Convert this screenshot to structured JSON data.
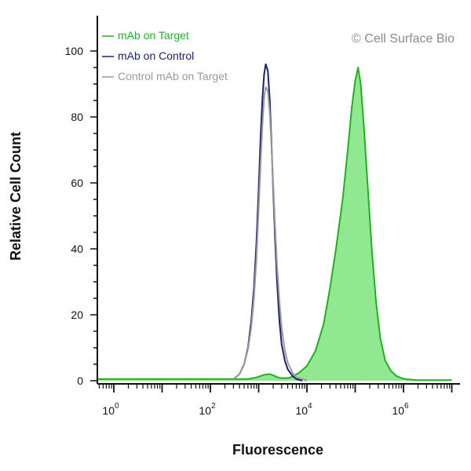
{
  "chart_data": {
    "type": "area",
    "title": "",
    "xlabel": "Fluorescence",
    "ylabel": "Relative Cell Count",
    "x_scale": "log",
    "xlim": [
      0.3,
      10000000
    ],
    "ylim": [
      0,
      100
    ],
    "grid": false,
    "legend_position": "top-left",
    "watermark": "© Cell Surface Bio",
    "x_ticks": [
      {
        "base": "10",
        "exp": "0",
        "value": 1
      },
      {
        "base": "10",
        "exp": "2",
        "value": 100
      },
      {
        "base": "10",
        "exp": "4",
        "value": 10000
      },
      {
        "base": "10",
        "exp": "6",
        "value": 1000000
      }
    ],
    "y_ticks": [
      {
        "label": "0",
        "value": 0
      },
      {
        "label": "20",
        "value": 20
      },
      {
        "label": "40",
        "value": 40
      },
      {
        "label": "60",
        "value": 60
      },
      {
        "label": "80",
        "value": 80
      },
      {
        "label": "100",
        "value": 100
      }
    ],
    "series": [
      {
        "name": "mAb on Target",
        "color": "#22b022",
        "fill": "#90e890",
        "filled": true,
        "x": [
          0.3,
          200,
          600,
          900,
          1300,
          1700,
          2100,
          2500,
          3000,
          4000,
          5000,
          7000,
          10000,
          15000,
          22000,
          30000,
          40000,
          55000,
          70000,
          85000,
          100000,
          115000,
          130000,
          150000,
          180000,
          220000,
          270000,
          330000,
          420000,
          550000,
          700000,
          900000,
          1200000,
          2000000,
          10000000
        ],
        "y": [
          0.5,
          0.5,
          0.5,
          1,
          1.8,
          2,
          1.5,
          1,
          0.8,
          0.8,
          1.2,
          2.5,
          4.5,
          9,
          17,
          28,
          40,
          55,
          70,
          83,
          91,
          95,
          90,
          78,
          60,
          40,
          24,
          13,
          6,
          3,
          1.5,
          0.8,
          0.4,
          0.2,
          0.2
        ]
      },
      {
        "name": "mAb on Control",
        "color": "#1a1f6e",
        "filled": false,
        "x": [
          300,
          400,
          500,
          600,
          700,
          800,
          900,
          1000,
          1100,
          1200,
          1300,
          1400,
          1550,
          1700,
          1850,
          2000,
          2200,
          2400,
          2700,
          3000,
          3500,
          4000,
          5000,
          6000,
          8000
        ],
        "y": [
          0.5,
          2,
          5,
          10,
          18,
          28,
          42,
          58,
          74,
          86,
          93,
          96,
          94,
          85,
          72,
          58,
          42,
          30,
          18,
          11,
          6,
          3.5,
          1.5,
          0.5,
          0
        ]
      },
      {
        "name": "Control mAb on Target",
        "color": "#9a9a9a",
        "filled": false,
        "x": [
          300,
          400,
          500,
          600,
          700,
          800,
          900,
          1000,
          1100,
          1200,
          1300,
          1400,
          1550,
          1700,
          1850,
          2000,
          2200,
          2400,
          2700,
          3000,
          3500,
          4000,
          5000,
          6000,
          8000,
          10000
        ],
        "y": [
          0.5,
          2,
          5,
          9.5,
          16,
          25,
          37,
          52,
          66,
          78,
          86,
          89,
          88,
          81,
          71,
          60,
          46,
          35,
          24,
          16,
          9,
          5.5,
          2.5,
          1,
          0.5,
          0
        ]
      }
    ]
  }
}
